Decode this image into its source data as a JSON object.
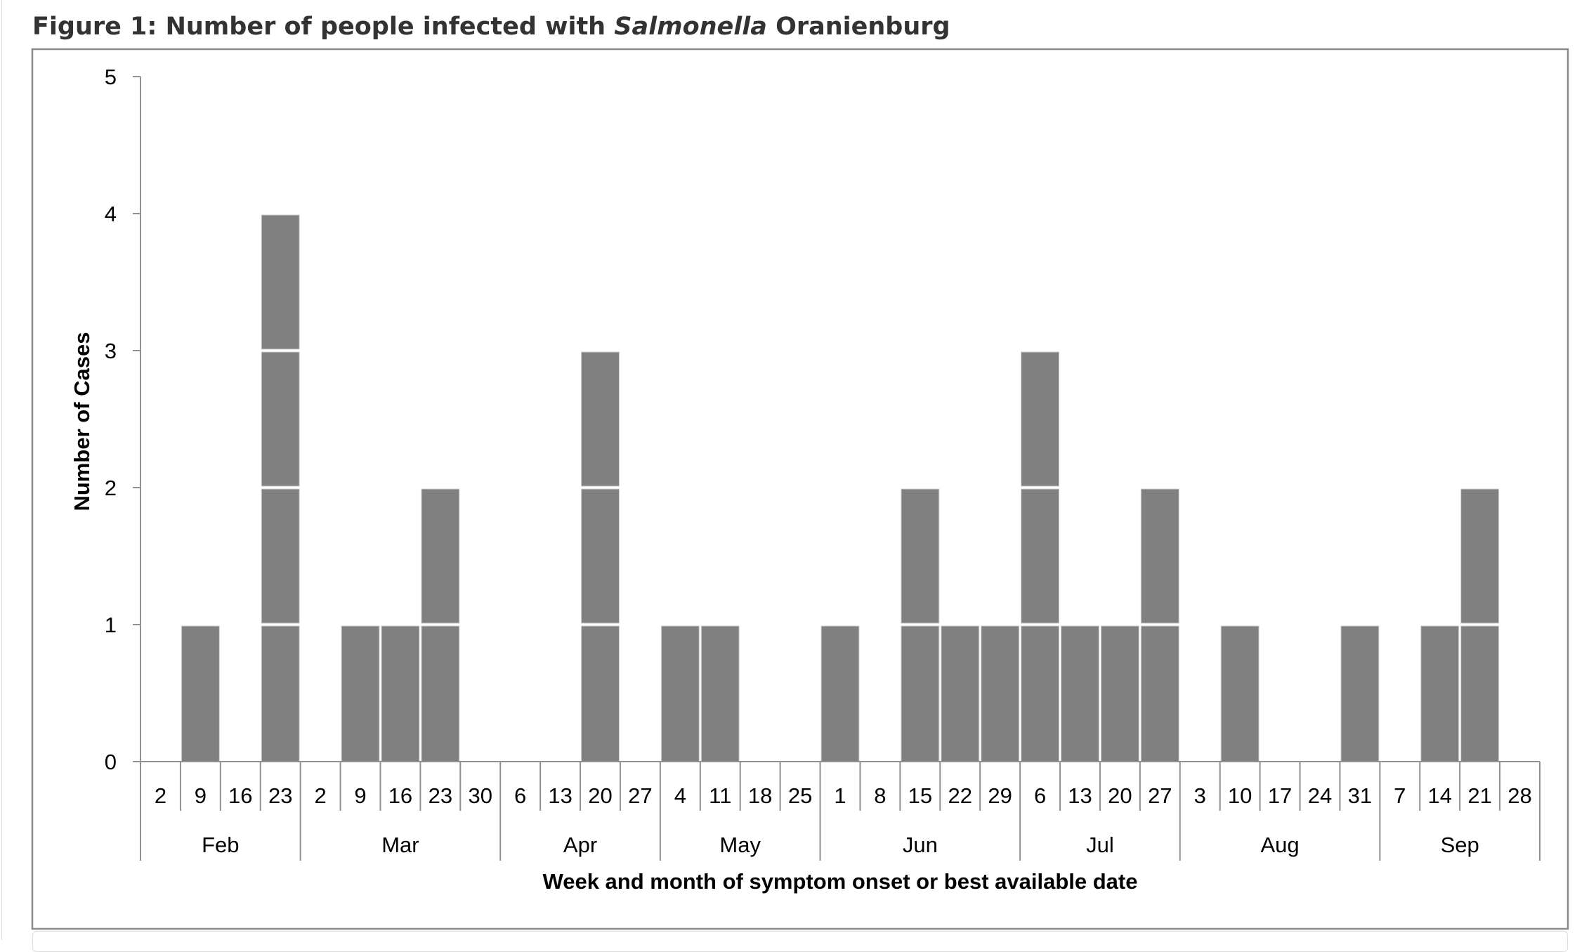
{
  "chart_data": {
    "type": "bar",
    "stacked_unit_cells": true,
    "title": {
      "prefix": "Figure 1: Number of people infected with ",
      "italic": "Salmonella",
      "suffix": " Oranienburg"
    },
    "xlabel": "Week and month of symptom onset or best available date",
    "ylabel": "Number of Cases",
    "ylim": [
      0,
      5
    ],
    "yticks": [
      "0",
      "1",
      "2",
      "3",
      "4",
      "5"
    ],
    "grid": false,
    "legend": "none",
    "months": [
      {
        "label": "Feb",
        "weeks": [
          "2",
          "9",
          "16",
          "23"
        ],
        "values": [
          0,
          1,
          0,
          4
        ]
      },
      {
        "label": "Mar",
        "weeks": [
          "2",
          "9",
          "16",
          "23",
          "30"
        ],
        "values": [
          0,
          1,
          1,
          2,
          0
        ]
      },
      {
        "label": "Apr",
        "weeks": [
          "6",
          "13",
          "20",
          "27"
        ],
        "values": [
          0,
          0,
          3,
          0
        ]
      },
      {
        "label": "May",
        "weeks": [
          "4",
          "11",
          "18",
          "25"
        ],
        "values": [
          1,
          1,
          0,
          0
        ]
      },
      {
        "label": "Jun",
        "weeks": [
          "1",
          "8",
          "15",
          "22",
          "29"
        ],
        "values": [
          1,
          0,
          2,
          1,
          1
        ]
      },
      {
        "label": "Jul",
        "weeks": [
          "6",
          "13",
          "20",
          "27"
        ],
        "values": [
          3,
          1,
          1,
          2
        ]
      },
      {
        "label": "Aug",
        "weeks": [
          "3",
          "10",
          "17",
          "24",
          "31"
        ],
        "values": [
          0,
          1,
          0,
          0,
          1
        ]
      },
      {
        "label": "Sep",
        "weeks": [
          "7",
          "14",
          "21",
          "28"
        ],
        "values": [
          0,
          1,
          2,
          0
        ]
      }
    ],
    "colors": {
      "bar": "#808080",
      "bar_edge": "#d0d0d0",
      "axis": "#909090",
      "frame": "#8a8a8a",
      "title": "#333333"
    }
  }
}
